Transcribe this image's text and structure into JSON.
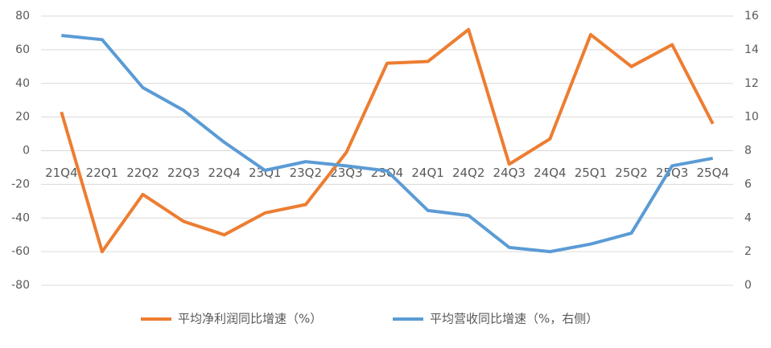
{
  "chart_data": {
    "type": "line",
    "categories": [
      "21Q4",
      "22Q1",
      "22Q2",
      "22Q3",
      "22Q4",
      "23Q1",
      "23Q2",
      "23Q3",
      "23Q4",
      "24Q1",
      "24Q2",
      "24Q3",
      "24Q4",
      "25Q1",
      "25Q2",
      "25Q3",
      "25Q4"
    ],
    "series": [
      {
        "name": "平均净利润同比增速（%）",
        "color": "#ed7d31",
        "values": [
          23,
          -60,
          -26,
          -42,
          -50,
          -37,
          -32,
          -1,
          52,
          53,
          72,
          -8,
          7,
          69,
          50,
          63,
          16
        ]
      },
      {
        "name": "平均营收同比增速（%，右侧）",
        "color": "#5b9bd5",
        "axis": "y2",
        "values": [
          14.85,
          14.6,
          11.75,
          10.4,
          8.5,
          6.83,
          7.35,
          7.1,
          6.8,
          4.45,
          4.15,
          2.25,
          2.0,
          2.45,
          3.1,
          7.1,
          7.55
        ]
      }
    ],
    "ylim": [
      -80,
      80
    ],
    "yticks": [
      -80,
      -60,
      -40,
      -20,
      0,
      20,
      40,
      60,
      80
    ],
    "y2lim": [
      0,
      16
    ],
    "y2ticks": [
      0,
      2,
      4,
      6,
      8,
      10,
      12,
      14,
      16
    ],
    "grid": true,
    "legend": "bottom"
  }
}
